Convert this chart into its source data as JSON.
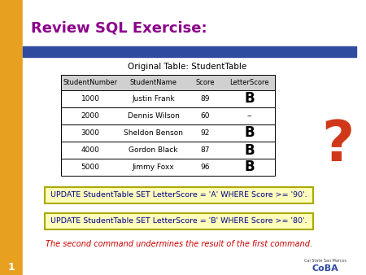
{
  "title": "Review SQL Exercise:",
  "title_color": "#8B008B",
  "slide_bg": "#F5C842",
  "left_bar_color": "#E8A020",
  "blue_bar_color": "#2E4BA0",
  "white_bg": "#FFFFFF",
  "table_title": "Original Table: StudentTable",
  "col_headers": [
    "StudentNumber",
    "StudentName",
    "Score",
    "LetterScore"
  ],
  "rows": [
    [
      "1000",
      "Justin Frank",
      "89",
      "B"
    ],
    [
      "2000",
      "Dennis Wilson",
      "60",
      "--"
    ],
    [
      "3000",
      "Sheldon Benson",
      "92",
      "B"
    ],
    [
      "4000",
      "Gordon Black",
      "87",
      "B"
    ],
    [
      "5000",
      "Jimmy Foxx",
      "96",
      "B"
    ]
  ],
  "letter_score_col": 3,
  "sql1": "UPDATE StudentTable SET LetterScore = 'A' WHERE Score >= '90'.",
  "sql2": "UPDATE StudentTable SET LetterScore = 'B' WHERE Score >= '80'.",
  "sql_color": "#00008B",
  "sql_box_border": "#AAAA00",
  "sql_box_fill": "#FFFFBB",
  "bottom_text": "The second command undermines the result of the first command.",
  "bottom_text_color": "#CC0000",
  "page_num": "1",
  "qmark_color": "#CC2200"
}
